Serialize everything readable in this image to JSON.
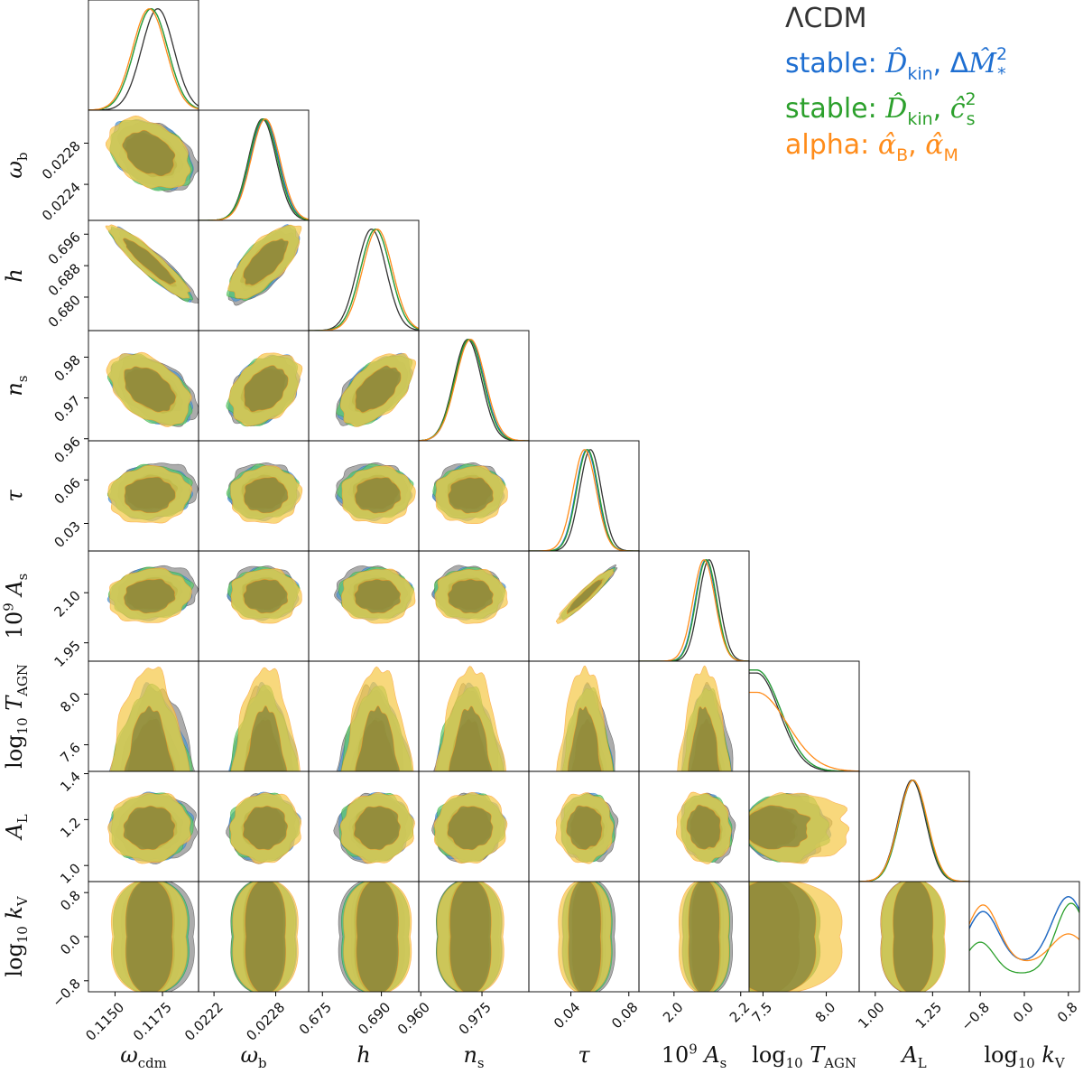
{
  "chart_data": {
    "type": "corner",
    "params": [
      "ω_cdm",
      "ω_b",
      "h",
      "n_s",
      "τ",
      "10^9 A_s",
      "log10 T_AGN",
      "A_L",
      "log10 k_V"
    ],
    "axis_labels": [
      {
        "base": "ω",
        "sub": "cdm"
      },
      {
        "base": "ω",
        "sub": "b"
      },
      {
        "base": "h"
      },
      {
        "base": "n",
        "sub": "s"
      },
      {
        "base": "τ"
      },
      {
        "pre": "10",
        "sup": "9",
        "base": " A",
        "sub": "s"
      },
      {
        "pre": "log",
        "presub": "10",
        "base": " T",
        "sub": "AGN"
      },
      {
        "base": "A",
        "sub": "L"
      },
      {
        "pre": "log",
        "presub": "10",
        "base": " k",
        "sub": "V"
      }
    ],
    "ranges": [
      [
        0.1136,
        0.1194
      ],
      [
        0.02205,
        0.02312
      ],
      [
        0.6715,
        0.6995
      ],
      [
        0.9595,
        0.9865
      ],
      [
        0.011,
        0.087
      ],
      [
        1.895,
        2.225
      ],
      [
        7.39,
        8.26
      ],
      [
        0.93,
        1.41
      ],
      [
        -1.0,
        1.0
      ]
    ],
    "x_ticks": [
      {
        "values": [
          0.115,
          0.1175
        ],
        "labels": [
          "0.1150",
          "0.1175"
        ]
      },
      {
        "values": [
          0.0222,
          0.0228
        ],
        "labels": [
          "0.0222",
          "0.0228"
        ]
      },
      {
        "values": [
          0.675,
          0.69
        ],
        "labels": [
          "0.675",
          "0.690"
        ]
      },
      {
        "values": [
          0.96,
          0.975
        ],
        "labels": [
          "0.960",
          "0.975"
        ]
      },
      {
        "values": [
          0.04,
          0.08
        ],
        "labels": [
          "0.04",
          "0.08"
        ]
      },
      {
        "values": [
          2.0,
          2.2
        ],
        "labels": [
          "2.0",
          "2.2"
        ]
      },
      {
        "values": [
          7.5,
          8.0
        ],
        "labels": [
          "7.5",
          "8.0"
        ]
      },
      {
        "values": [
          1.0,
          1.25
        ],
        "labels": [
          "1.00",
          "1.25"
        ]
      },
      {
        "values": [
          -0.8,
          0.0,
          0.8
        ],
        "labels": [
          "−0.8",
          "0.0",
          "0.8"
        ]
      }
    ],
    "y_ticks": [
      null,
      {
        "values": [
          0.0224,
          0.0228
        ],
        "labels": [
          "0.0224",
          "0.0228"
        ]
      },
      {
        "values": [
          0.68,
          0.688,
          0.696
        ],
        "labels": [
          "0.680",
          "0.688",
          "0.696"
        ]
      },
      {
        "values": [
          0.96,
          0.97,
          0.98
        ],
        "labels": [
          "0.96",
          "0.97",
          "0.98"
        ]
      },
      {
        "values": [
          0.03,
          0.06
        ],
        "labels": [
          "0.03",
          "0.06"
        ]
      },
      {
        "values": [
          1.95,
          2.1
        ],
        "labels": [
          "1.95",
          "2.10"
        ]
      },
      {
        "values": [
          7.6,
          8.0
        ],
        "labels": [
          "7.6",
          "8.0"
        ]
      },
      {
        "values": [
          1.0,
          1.2,
          1.4
        ],
        "labels": [
          "1.0",
          "1.2",
          "1.4"
        ]
      },
      {
        "values": [
          -0.8,
          0.0,
          0.8
        ],
        "labels": [
          "−0.8",
          "0.0",
          "0.8"
        ]
      }
    ],
    "series": [
      {
        "name": "ΛCDM",
        "label_plain": "ΛCDM",
        "color": "#333333",
        "fill_outer": "#8c8c8c",
        "fill_inner": "#3c3c3c",
        "mean": [
          0.11725,
          0.02267,
          0.6875,
          0.9715,
          0.0535,
          2.105,
          7.53,
          1.16,
          0.0
        ],
        "sigma": [
          0.00085,
          0.000135,
          0.0037,
          0.0034,
          0.0075,
          0.031,
          0.18,
          0.06,
          0.6
        ]
      },
      {
        "name": "stable: D_kin, ΔM*²",
        "label_plain": "stable: ",
        "label_rest": [
          " ",
          "kin",
          ", Δ",
          "M",
          "2",
          "*"
        ],
        "color": "#1f6fd1",
        "fill_outer": "#4f97c9",
        "fill_inner": "#2a5f7a",
        "mean": [
          0.1169,
          0.02269,
          0.6885,
          0.972,
          0.051,
          2.095,
          7.52,
          1.165,
          0.0
        ],
        "sigma": [
          0.00088,
          0.000138,
          0.0038,
          0.0035,
          0.0075,
          0.031,
          0.19,
          0.06,
          0.6
        ]
      },
      {
        "name": "stable: D_kin, c_s²",
        "label_plain": "stable: ",
        "color": "#2ca02c",
        "fill_outer": "#5ecb6b",
        "fill_inner": "#2f6e3e",
        "mean": [
          0.1169,
          0.02268,
          0.6885,
          0.9718,
          0.0515,
          2.097,
          7.52,
          1.165,
          0.0
        ],
        "sigma": [
          0.00088,
          0.000138,
          0.0038,
          0.0035,
          0.0075,
          0.031,
          0.19,
          0.06,
          0.6
        ]
      },
      {
        "name": "alpha: α_B, α_M",
        "label_plain": "alpha: ",
        "color": "#ff8c1a",
        "fill_outer": "#f5c94a",
        "fill_inner": "#6e6a2f",
        "mean": [
          0.1168,
          0.0227,
          0.689,
          0.9722,
          0.0495,
          2.09,
          7.58,
          1.165,
          0.0
        ],
        "sigma": [
          0.00088,
          0.00014,
          0.0038,
          0.0036,
          0.008,
          0.033,
          0.24,
          0.062,
          0.6
        ]
      }
    ],
    "legend": {
      "placement": "top-right",
      "entries": [
        {
          "text": "ΛCDM",
          "color": "#333333"
        },
        {
          "text": "stable: D̂kin, ΔM̂²*",
          "prefix": "stable: ",
          "color": "#1f6fd1"
        },
        {
          "text": "stable: D̂kin, ĉ²s",
          "prefix": "stable: ",
          "color": "#2ca02c"
        },
        {
          "text": "alpha: α̂B, α̂M",
          "prefix": "alpha: ",
          "color": "#ff8c1a"
        }
      ]
    },
    "correlations": {
      "1-0": -0.35,
      "2-0": -0.92,
      "2-1": 0.7,
      "3-0": -0.45,
      "3-1": 0.35,
      "3-2": 0.55,
      "4-0": 0.05,
      "4-1": 0.05,
      "4-2": 0.05,
      "4-3": 0.05,
      "5-0": 0.1,
      "5-1": 0.0,
      "5-2": 0.0,
      "5-3": 0.0,
      "5-4": 0.95,
      "7-0": 0.05,
      "7-1": 0.05,
      "7-2": 0.05,
      "7-3": 0.05,
      "7-4": 0.0,
      "7-5": -0.1,
      "7-6": 0.0
    }
  }
}
